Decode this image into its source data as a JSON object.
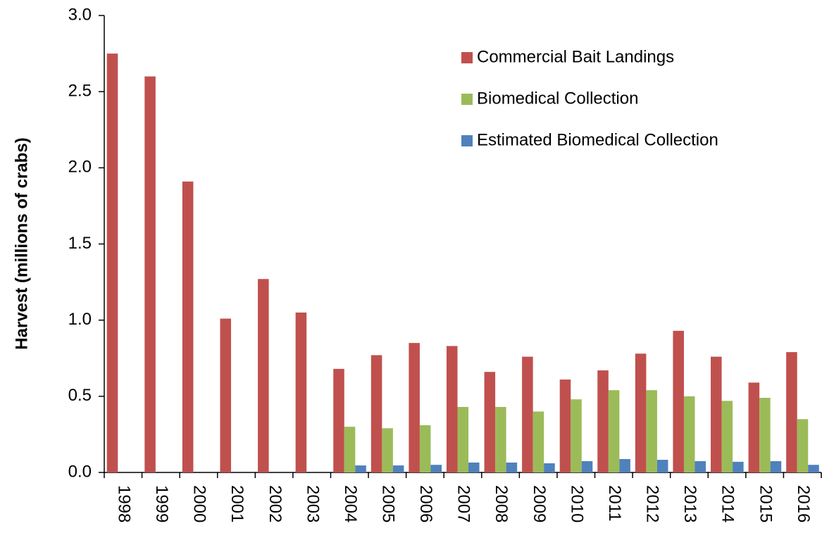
{
  "chart_data": {
    "type": "bar",
    "y_label": "Harvest (millions of crabs)",
    "categories": [
      "1998",
      "1999",
      "2000",
      "2001",
      "2002",
      "2003",
      "2004",
      "2005",
      "2006",
      "2007",
      "2008",
      "2009",
      "2010",
      "2011",
      "2012",
      "2013",
      "2014",
      "2015",
      "2016"
    ],
    "series": [
      {
        "name": "Commercial Bait Landings",
        "color": "#c0504d",
        "values": [
          2.75,
          2.6,
          1.91,
          1.01,
          1.27,
          1.05,
          0.68,
          0.77,
          0.85,
          0.83,
          0.66,
          0.76,
          0.61,
          0.67,
          0.78,
          0.93,
          0.76,
          0.59,
          0.79
        ]
      },
      {
        "name": "Biomedical Collection",
        "color": "#9bbb59",
        "values": [
          null,
          null,
          null,
          null,
          null,
          null,
          0.3,
          0.29,
          0.31,
          0.43,
          0.43,
          0.4,
          0.48,
          0.54,
          0.54,
          0.5,
          0.47,
          0.49,
          0.35
        ]
      },
      {
        "name": "Estimated Biomedical Collection",
        "color": "#4f81bd",
        "values": [
          null,
          null,
          null,
          null,
          null,
          null,
          0.046,
          0.046,
          0.05,
          0.065,
          0.065,
          0.06,
          0.074,
          0.088,
          0.083,
          0.074,
          0.07,
          0.074,
          0.05
        ]
      }
    ],
    "ylim": [
      0,
      3
    ],
    "yticks": [
      {
        "value": 0,
        "label": "0.0"
      },
      0.5,
      {
        "value": 1,
        "label": "1.0"
      },
      1.5,
      {
        "value": 2,
        "label": "2.0"
      },
      2.5,
      {
        "value": 3,
        "label": "3.0"
      }
    ],
    "grid": false,
    "legend": "top-right"
  }
}
